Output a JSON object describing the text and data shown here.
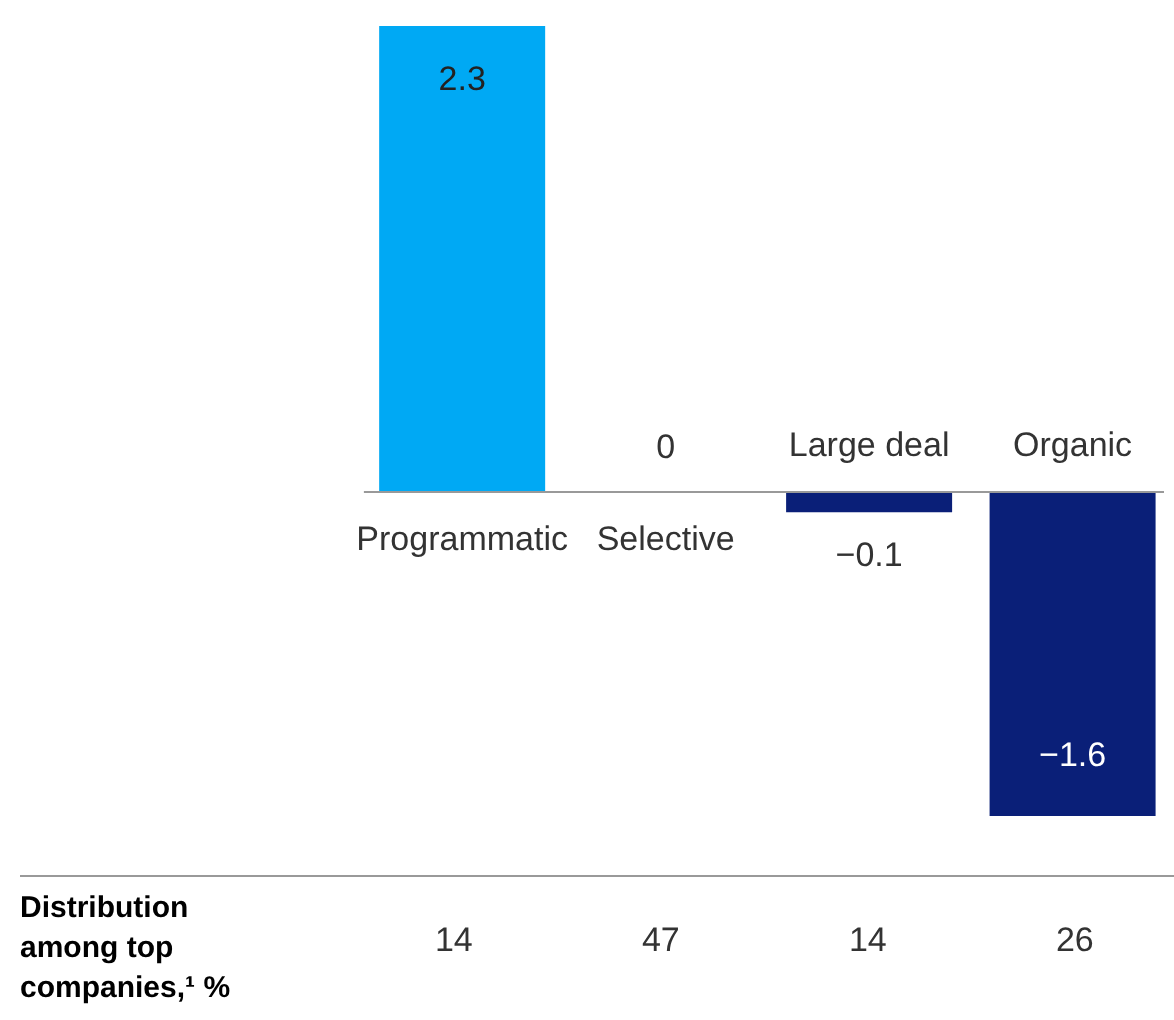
{
  "chart_data": [
    {
      "type": "bar",
      "categories": [
        "Programmatic",
        "Selective",
        "Large deal",
        "Organic"
      ],
      "values": [
        2.3,
        0,
        -0.1,
        -1.6
      ],
      "colors": [
        "#00a9f4",
        "#0a1f78",
        "#0a1f78",
        "#0a1f78"
      ],
      "data_labels": true
    },
    {
      "type": "other",
      "title": "Distribution among top companies,¹ %",
      "values": [
        14,
        47,
        14,
        26
      ],
      "data_labels": true
    }
  ]
}
